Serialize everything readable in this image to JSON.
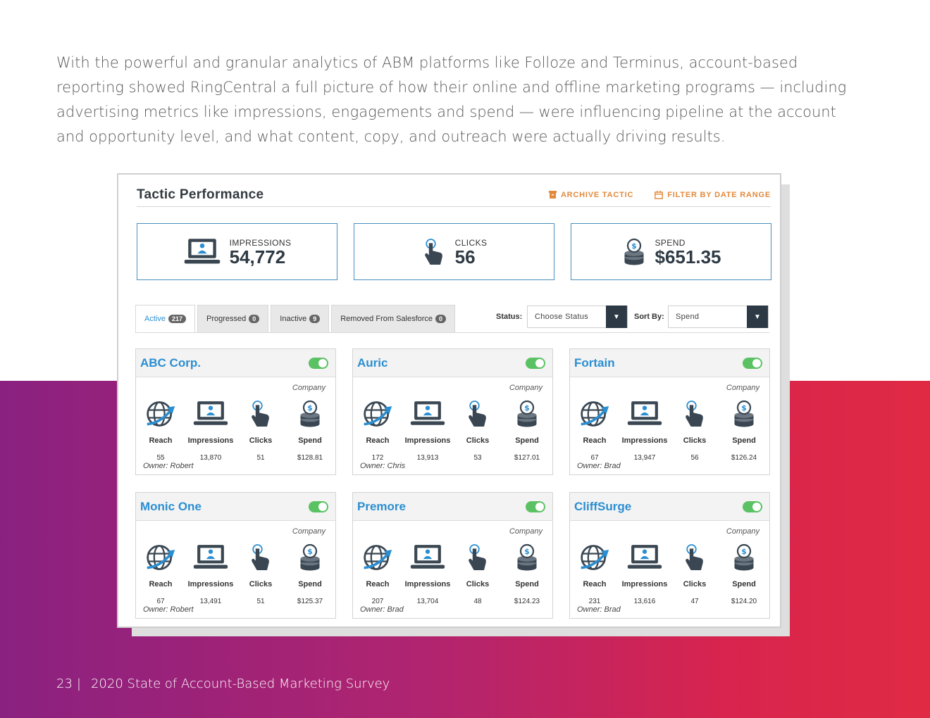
{
  "intro_text": "With the powerful and granular analytics of ABM platforms like Folloze and Terminus, account-based reporting showed RingCentral a full picture of how their online and offline marketing programs — including advertising metrics like impressions, engagements and spend — were influencing pipeline at the account and opportunity level, and what content, copy, and outreach were actually driving results.",
  "footer": {
    "page_number": "23",
    "separator": "|",
    "title": "2020 State of Account-Based Marketing Survey"
  },
  "panel": {
    "title": "Tactic Performance",
    "archive_label": "ARCHIVE TACTIC",
    "date_range_label": "FILTER BY DATE RANGE"
  },
  "stats": {
    "impressions": {
      "label": "IMPRESSIONS",
      "value": "54,772"
    },
    "clicks": {
      "label": "CLICKS",
      "value": "56"
    },
    "spend": {
      "label": "SPEND",
      "value": "$651.35"
    }
  },
  "tabs": [
    {
      "label": "Active",
      "count": "217"
    },
    {
      "label": "Progressed",
      "count": "0"
    },
    {
      "label": "Inactive",
      "count": "9"
    },
    {
      "label": "Removed From Salesforce",
      "count": "0"
    }
  ],
  "filters": {
    "status_label": "Status:",
    "status_value": "Choose Status",
    "sort_label": "Sort By:",
    "sort_value": "Spend"
  },
  "card_labels": {
    "company": "Company",
    "reach": "Reach",
    "impressions": "Impressions",
    "clicks": "Clicks",
    "spend": "Spend"
  },
  "accounts": [
    {
      "name": "ABC Corp.",
      "reach": "55",
      "impressions": "13,870",
      "clicks": "51",
      "spend": "$128.81",
      "owner": "Owner: Robert"
    },
    {
      "name": "Auric",
      "reach": "172",
      "impressions": "13,913",
      "clicks": "53",
      "spend": "$127.01",
      "owner": "Owner: Chris"
    },
    {
      "name": "Fortain",
      "reach": "67",
      "impressions": "13,947",
      "clicks": "56",
      "spend": "$126.24",
      "owner": "Owner: Brad"
    },
    {
      "name": "Monic One",
      "reach": "67",
      "impressions": "13,491",
      "clicks": "51",
      "spend": "$125.37",
      "owner": "Owner: Robert"
    },
    {
      "name": "Premore",
      "reach": "207",
      "impressions": "13,704",
      "clicks": "48",
      "spend": "$124.23",
      "owner": "Owner: Brad"
    },
    {
      "name": "CliffSurge",
      "reach": "231",
      "impressions": "13,616",
      "clicks": "47",
      "spend": "$124.20",
      "owner": "Owner: Brad"
    }
  ],
  "colors": {
    "accent_blue": "#2a8ed1",
    "action_orange": "#e28a3d",
    "toggle_green": "#5bc264",
    "icon_dark": "#3a4752",
    "band_start": "#8a2180",
    "band_end": "#e02a44"
  },
  "icons": {
    "reach": "globe-arrow-icon",
    "impressions": "laptop-user-icon",
    "clicks": "pointer-hand-icon",
    "spend": "coin-stack-icon",
    "archive": "archive-box-icon",
    "date_range": "calendar-icon",
    "dropdown": "chevron-down-icon"
  }
}
